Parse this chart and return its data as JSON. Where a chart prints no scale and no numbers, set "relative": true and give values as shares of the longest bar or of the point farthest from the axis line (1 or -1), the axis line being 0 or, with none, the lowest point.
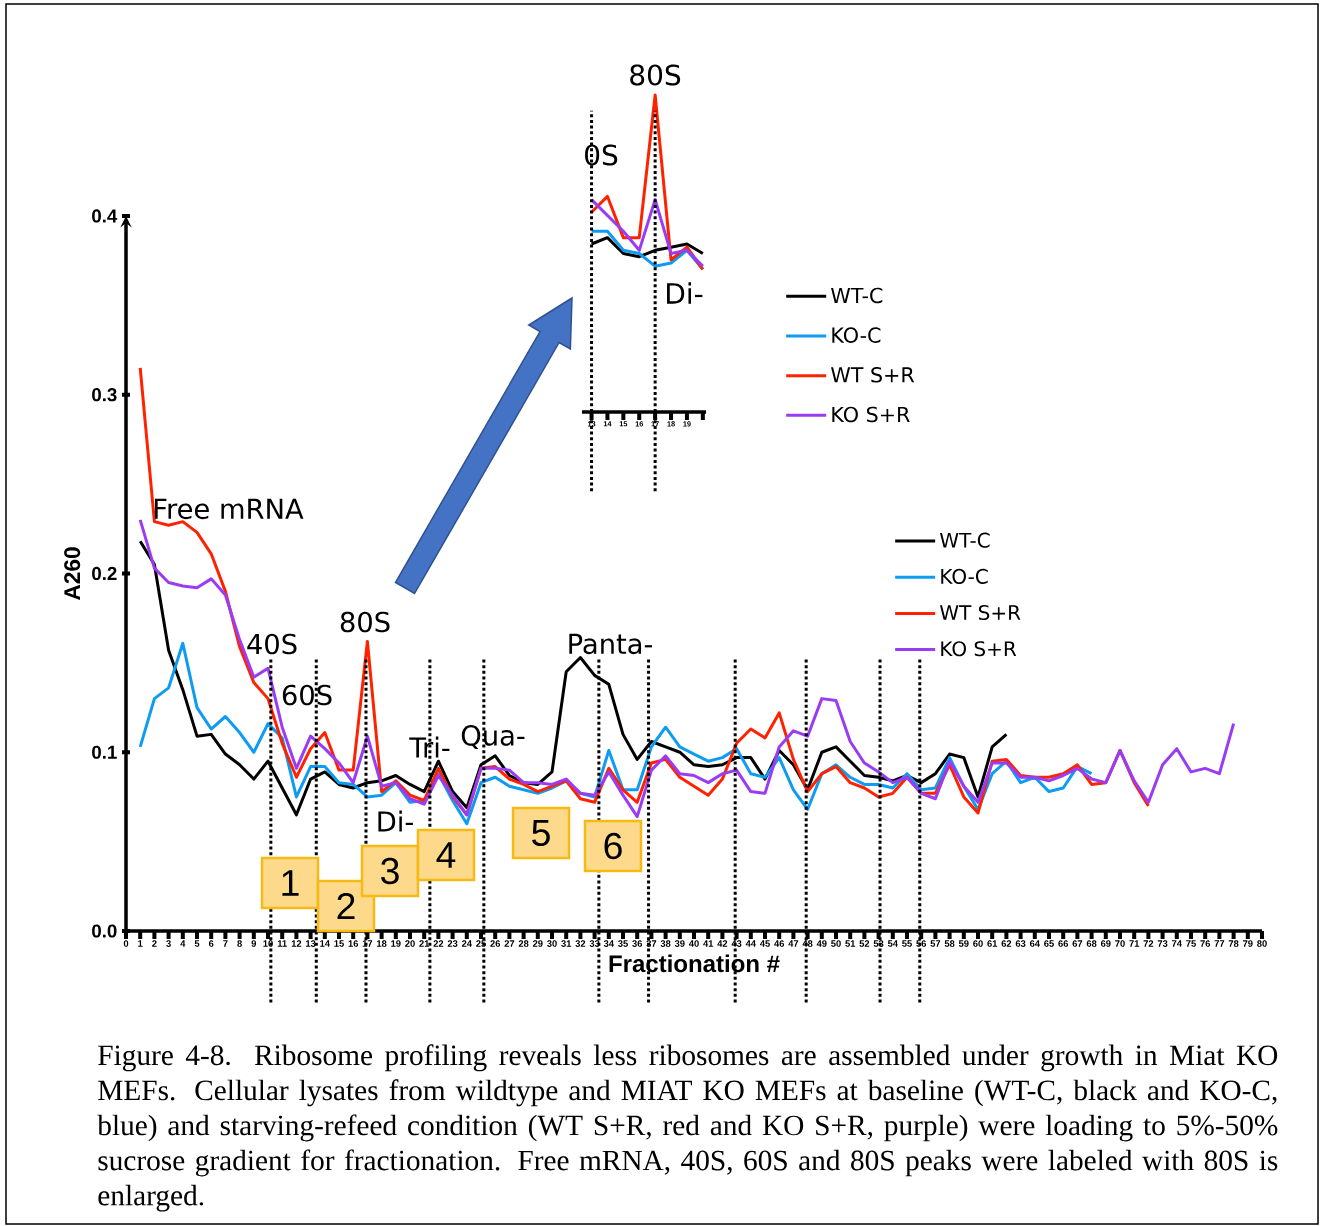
{
  "chart_data": [
    {
      "type": "line",
      "xlabel": "Fractionation #",
      "ylabel": "A260",
      "x": [
        1,
        2,
        3,
        4,
        5,
        6,
        7,
        8,
        9,
        10,
        11,
        12,
        13,
        14,
        15,
        16,
        17,
        18,
        19,
        20,
        21,
        22,
        23,
        24,
        25,
        26,
        27,
        28,
        29,
        30,
        31,
        32,
        33,
        34,
        35,
        36,
        37,
        38,
        39,
        40,
        41,
        42,
        43,
        44,
        45,
        46,
        47,
        48,
        49,
        50,
        51,
        52,
        53,
        54,
        55,
        56,
        57,
        58,
        59,
        60,
        61,
        62,
        63,
        64,
        65,
        66,
        67,
        68,
        69,
        70,
        71,
        72,
        73,
        74,
        75,
        76,
        77,
        78
      ],
      "series": [
        {
          "name": "WT-C",
          "color": "#000000",
          "values": [
            0.218,
            0.205,
            0.157,
            0.135,
            0.109,
            0.11,
            0.099,
            0.093,
            0.085,
            0.095,
            0.08,
            0.065,
            0.085,
            0.089,
            0.082,
            0.08,
            0.083,
            0.084,
            0.087,
            0.082,
            0.078,
            0.095,
            0.078,
            0.069,
            0.093,
            0.098,
            0.087,
            0.083,
            0.082,
            0.089,
            0.145,
            0.153,
            0.143,
            0.138,
            0.11,
            0.096,
            0.106,
            0.103,
            0.1,
            0.093,
            0.092,
            0.093,
            0.097,
            0.097,
            0.085,
            0.101,
            0.093,
            0.079,
            0.1,
            0.103,
            0.095,
            0.087,
            0.086,
            0.084,
            0.087,
            0.083,
            0.088,
            0.099,
            0.097,
            0.075,
            0.103,
            0.11,
            null,
            null,
            null,
            null,
            null,
            null,
            null,
            null,
            null,
            null,
            null,
            null,
            null,
            null,
            null,
            null
          ]
        },
        {
          "name": "KO-C",
          "color": "#0e9cf2",
          "values": [
            0.103,
            0.13,
            0.136,
            0.161,
            0.125,
            0.113,
            0.12,
            0.111,
            0.1,
            0.116,
            0.108,
            0.075,
            0.092,
            0.092,
            0.083,
            0.082,
            0.075,
            0.076,
            0.083,
            0.072,
            0.073,
            0.088,
            0.073,
            0.06,
            0.083,
            0.086,
            0.081,
            0.079,
            0.077,
            0.08,
            0.084,
            0.077,
            0.075,
            0.101,
            0.079,
            0.079,
            0.103,
            0.114,
            0.103,
            0.099,
            0.095,
            0.097,
            0.102,
            0.088,
            0.086,
            0.097,
            0.079,
            0.068,
            0.088,
            0.093,
            0.086,
            0.082,
            0.082,
            0.08,
            0.088,
            0.079,
            0.08,
            0.097,
            0.081,
            0.068,
            0.088,
            0.095,
            0.083,
            0.086,
            0.078,
            0.08,
            0.092,
            0.088,
            null,
            null,
            null,
            null,
            null,
            null,
            null,
            null,
            null,
            null
          ]
        },
        {
          "name": "WT S+R",
          "color": "#ff2200",
          "values": [
            0.315,
            0.229,
            0.227,
            0.229,
            0.223,
            0.211,
            0.19,
            0.159,
            0.139,
            0.13,
            0.105,
            0.086,
            0.102,
            0.111,
            0.09,
            0.09,
            0.162,
            0.078,
            0.084,
            0.076,
            0.073,
            0.091,
            0.075,
            0.065,
            0.091,
            0.092,
            0.085,
            0.082,
            0.078,
            0.081,
            0.084,
            0.074,
            0.072,
            0.091,
            0.079,
            0.072,
            0.094,
            0.096,
            0.086,
            0.081,
            0.076,
            0.085,
            0.105,
            0.113,
            0.108,
            0.122,
            0.096,
            0.078,
            0.088,
            0.092,
            0.083,
            0.08,
            0.075,
            0.077,
            0.086,
            0.077,
            0.077,
            0.093,
            0.075,
            0.066,
            0.095,
            0.096,
            0.087,
            0.086,
            0.086,
            0.088,
            0.093,
            0.082,
            0.083,
            0.101,
            0.083,
            0.07,
            null,
            null,
            null,
            null,
            null,
            null
          ]
        },
        {
          "name": "KO S+R",
          "color": "#9b3cf5",
          "values": [
            0.23,
            0.203,
            0.195,
            0.193,
            0.192,
            0.197,
            0.188,
            0.163,
            0.142,
            0.147,
            0.114,
            0.091,
            0.109,
            0.102,
            0.094,
            0.083,
            0.109,
            0.081,
            0.083,
            0.074,
            0.071,
            0.087,
            0.076,
            0.065,
            0.091,
            0.091,
            0.09,
            0.083,
            0.083,
            0.082,
            0.085,
            0.077,
            0.076,
            0.089,
            0.076,
            0.064,
            0.09,
            0.098,
            0.088,
            0.087,
            0.083,
            0.088,
            0.09,
            0.078,
            0.077,
            0.103,
            0.112,
            0.109,
            0.13,
            0.129,
            0.106,
            0.094,
            0.089,
            0.083,
            0.086,
            0.077,
            0.074,
            0.095,
            0.081,
            0.072,
            0.094,
            0.094,
            0.086,
            0.086,
            0.084,
            0.087,
            0.091,
            0.085,
            0.083,
            0.101,
            0.084,
            0.072,
            0.093,
            0.102,
            0.089,
            0.091,
            0.088,
            0.116
          ]
        }
      ],
      "xlim": [
        0,
        80
      ],
      "xticks": [
        0,
        1,
        2,
        3,
        4,
        5,
        6,
        7,
        8,
        9,
        10,
        11,
        12,
        13,
        14,
        15,
        16,
        17,
        18,
        19,
        20,
        21,
        22,
        23,
        24,
        25,
        26,
        27,
        28,
        29,
        30,
        31,
        32,
        33,
        34,
        35,
        36,
        37,
        38,
        39,
        40,
        41,
        42,
        43,
        44,
        45,
        46,
        47,
        48,
        49,
        50,
        51,
        52,
        53,
        54,
        55,
        56,
        57,
        58,
        59,
        60,
        61,
        62,
        63,
        64,
        65,
        66,
        67,
        68,
        69,
        70,
        71,
        72,
        73,
        74,
        75,
        76,
        77,
        78,
        79,
        80
      ],
      "ylim": [
        0,
        0.4
      ],
      "yticks": [
        {
          "value": 0,
          "label": "0.0"
        },
        {
          "value": 0.1,
          "label": "0.1"
        },
        {
          "value": 0.2,
          "label": "0.2"
        },
        {
          "value": 0.3,
          "label": "0.3"
        },
        {
          "value": 0.4,
          "label": "0.4"
        }
      ],
      "legend": "right",
      "ref_lines": [
        {
          "axis": "x",
          "value": 10.2,
          "line_style": "dotted"
        },
        {
          "axis": "x",
          "value": 13.4,
          "line_style": "dotted"
        },
        {
          "axis": "x",
          "value": 16.9,
          "line_style": "dotted"
        },
        {
          "axis": "x",
          "value": 21.4,
          "line_style": "dotted"
        },
        {
          "axis": "x",
          "value": 25.2,
          "line_style": "dotted"
        },
        {
          "axis": "x",
          "value": 33.3,
          "line_style": "dotted"
        },
        {
          "axis": "x",
          "value": 36.8,
          "line_style": "dotted"
        },
        {
          "axis": "x",
          "value": 42.9,
          "line_style": "dotted"
        },
        {
          "axis": "x",
          "value": 47.9,
          "line_style": "dotted"
        },
        {
          "axis": "x",
          "value": 53.1,
          "line_style": "dotted"
        },
        {
          "axis": "x",
          "value": 55.9,
          "line_style": "dotted"
        }
      ],
      "annotations": [
        "Free mRNA",
        "40S",
        "60S",
        "80S",
        "Tri-",
        "Qua-",
        "Di-",
        "Panta-",
        "1",
        "2",
        "3",
        "4",
        "5",
        "6",
        "Figure 4-8. Ribosome profiling reveals less ribosomes are assembled under growth in Miat KO MEFs. Cellular lysates from wildtype and MIAT KO MEFs at baseline (WT-C, black and KO-C, blue) and starving-refeed condition (WT S+R, red and KO S+R, purple) were loading to 5%-50% sucrose gradient for fractionation. Free mRNA, 40S, 60S and 80S peaks were labeled with 80S is enlarged."
      ]
    },
    {
      "type": "line",
      "relative": true,
      "x": [
        13,
        14,
        15,
        16,
        17,
        18,
        19,
        20
      ],
      "series": [
        {
          "name": "WT-C",
          "color": "#000000",
          "values": [
            0.53,
            0.55,
            0.5,
            0.49,
            0.51,
            0.52,
            0.53,
            0.5
          ]
        },
        {
          "name": "KO-C",
          "color": "#0e9cf2",
          "values": [
            0.57,
            0.57,
            0.51,
            0.5,
            0.46,
            0.47,
            0.51,
            0.45
          ]
        },
        {
          "name": "WT S+R",
          "color": "#ff2200",
          "values": [
            0.63,
            0.68,
            0.55,
            0.55,
            1.0,
            0.48,
            0.52,
            0.45
          ]
        },
        {
          "name": "KO S+R",
          "color": "#9b3cf5",
          "values": [
            0.67,
            0.62,
            0.57,
            0.51,
            0.67,
            0.5,
            0.51,
            0.46
          ]
        }
      ],
      "xlim": [
        12.4,
        20.2
      ],
      "xticks": [
        13,
        14,
        15,
        16,
        17,
        18,
        19,
        {
          "value": 20,
          "label": null
        }
      ],
      "tick_labels": "x",
      "legend": "right",
      "ref_lines": [
        {
          "axis": "x",
          "value": 13,
          "line_style": "dotted"
        },
        {
          "axis": "x",
          "value": 17,
          "line_style": "dotted"
        }
      ],
      "annotations": [
        "0S",
        "80S",
        "Di-"
      ]
    }
  ]
}
